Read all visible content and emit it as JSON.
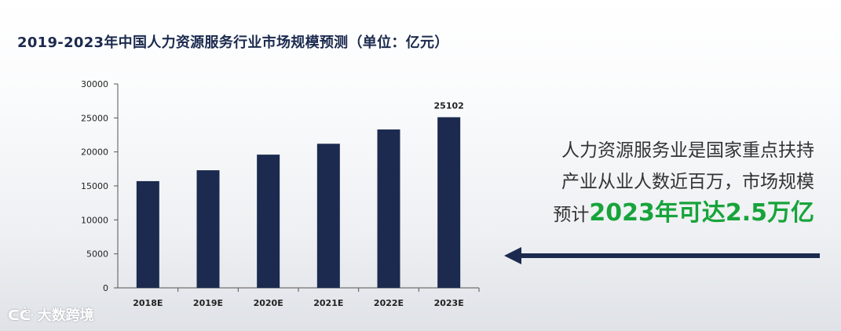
{
  "title": "2019-2023年中国人力资源服务行业市场规模预测（单位：亿元）",
  "chart_data": {
    "type": "bar",
    "title": "2019-2023年中国人力资源服务行业市场规模预测（单位：亿元）",
    "categories": [
      "2018E",
      "2019E",
      "2020E",
      "2021E",
      "2022E",
      "2023E"
    ],
    "values": [
      15700,
      17300,
      19600,
      21200,
      23300,
      25102
    ],
    "data_labels": [
      "",
      "",
      "",
      "",
      "",
      "25102"
    ],
    "yticks": [
      "0",
      "5000",
      "10000",
      "15000",
      "20000",
      "25000",
      "30000"
    ],
    "ylim": [
      0,
      30000
    ],
    "xlabel": "",
    "ylabel": "",
    "bar_color": "#1b2a4e",
    "grid": false,
    "legend": "none"
  },
  "annotation": {
    "line1": "人力资源服务业是国家重点扶持",
    "line2": "产业从业人数近百万，市场规模",
    "line3_prefix": "预计",
    "line3_highlight": "2023年可达2.5万亿",
    "highlight_color": "#17a43b"
  },
  "logo": {
    "icon": "logo-icon",
    "text": "大数跨境"
  }
}
